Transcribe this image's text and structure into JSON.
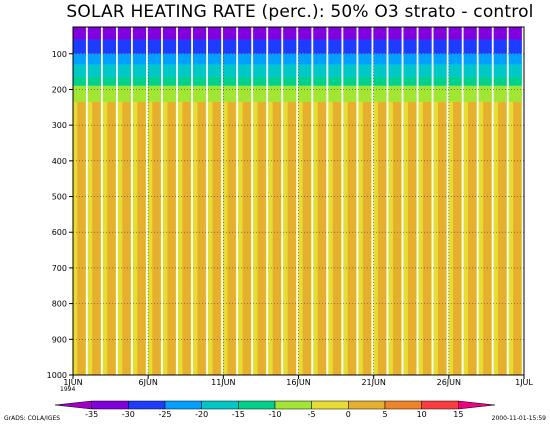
{
  "chart_data": {
    "type": "heatmap",
    "title": "SOLAR HEATING RATE (perc.): 50% O3 strato - control",
    "y_axis": {
      "ticks": [
        "100",
        "200",
        "300",
        "400",
        "500",
        "600",
        "700",
        "800",
        "900",
        "1000"
      ],
      "values": [
        100,
        200,
        300,
        400,
        500,
        600,
        700,
        800,
        900,
        1000
      ],
      "range": [
        25,
        1000
      ],
      "reversed": true
    },
    "x_axis": {
      "ticks": [
        "1JUN",
        "6JUN",
        "11JUN",
        "16JUN",
        "21JUN",
        "26JUN",
        "1JUL"
      ],
      "year_label": "1994",
      "range_days": [
        0,
        30
      ]
    },
    "grid": true,
    "colorbar": {
      "levels": [
        "-35",
        "-30",
        "-25",
        "-20",
        "-15",
        "-10",
        "-5",
        "0",
        "5",
        "10",
        "15"
      ],
      "colors": [
        "#a000c8",
        "#8200dc",
        "#1e3cff",
        "#00a0ff",
        "#00c8c8",
        "#00d28c",
        "#a0e632",
        "#e6dc32",
        "#e6af2d",
        "#f08228",
        "#fa3c3c",
        "#f00082"
      ]
    },
    "bands": [
      {
        "p_top": 25,
        "p_bottom": 60,
        "color": "#8200dc"
      },
      {
        "p_top": 60,
        "p_bottom": 100,
        "color": "#1e3cff"
      },
      {
        "p_top": 100,
        "p_bottom": 130,
        "color": "#00a0ff"
      },
      {
        "p_top": 130,
        "p_bottom": 165,
        "color": "#00c8c8"
      },
      {
        "p_top": 165,
        "p_bottom": 190,
        "color": "#00d28c"
      },
      {
        "p_top": 190,
        "p_bottom": 235,
        "color": "#a0e632"
      },
      {
        "p_top": 235,
        "p_bottom": 1000,
        "color": "#e6dc32"
      }
    ],
    "stripe_color": "#e6af2d",
    "stripe_period_days": 1,
    "footer_left": "GrADS: COLA/IGES",
    "footer_right": "2000-11-01-15:59"
  }
}
